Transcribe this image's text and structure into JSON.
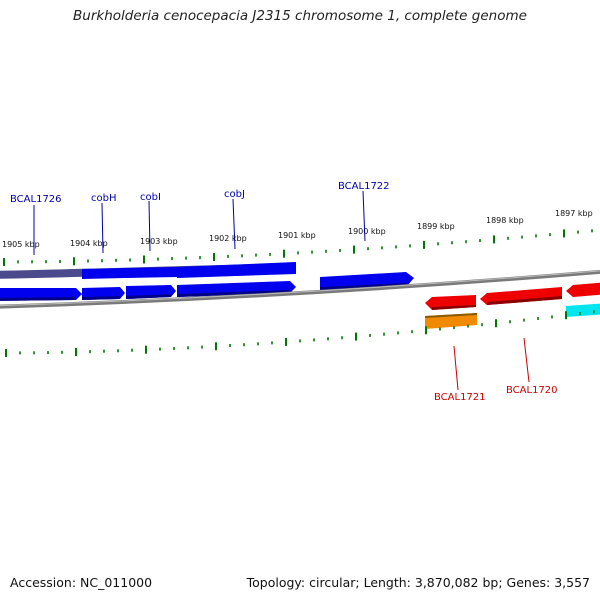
{
  "title": "Burkholderia cenocepacia J2315 chromosome 1, complete genome",
  "footer": {
    "accession": "Accession: NC_011000",
    "topology": "Topology: circular; Length: 3,870,082 bp; Genes: 3,557"
  },
  "ruler_labels": [
    "1905 kbp",
    "1904 kbp",
    "1903 kbp",
    "1902 kbp",
    "1901 kbp",
    "1900 kbp",
    "1899 kbp",
    "1898 kbp",
    "1897 kbp"
  ],
  "genes": {
    "forward_strand": [
      "BCAL1726",
      "cobH",
      "cobI",
      "cobJ",
      "BCAL1722"
    ],
    "reverse_strand": [
      "BCAL1721",
      "BCAL1720"
    ]
  },
  "colors": {
    "forward_cds": "#0000ee",
    "reverse_cds": "#ee0000",
    "orange_cds": "#f08a00",
    "cyan_cds": "#00e5ee",
    "dark_feature": "#4a4a8c",
    "backbone": "#808080",
    "tick": "#007700",
    "forward_label": "#0000aa",
    "reverse_label": "#cc0000"
  }
}
